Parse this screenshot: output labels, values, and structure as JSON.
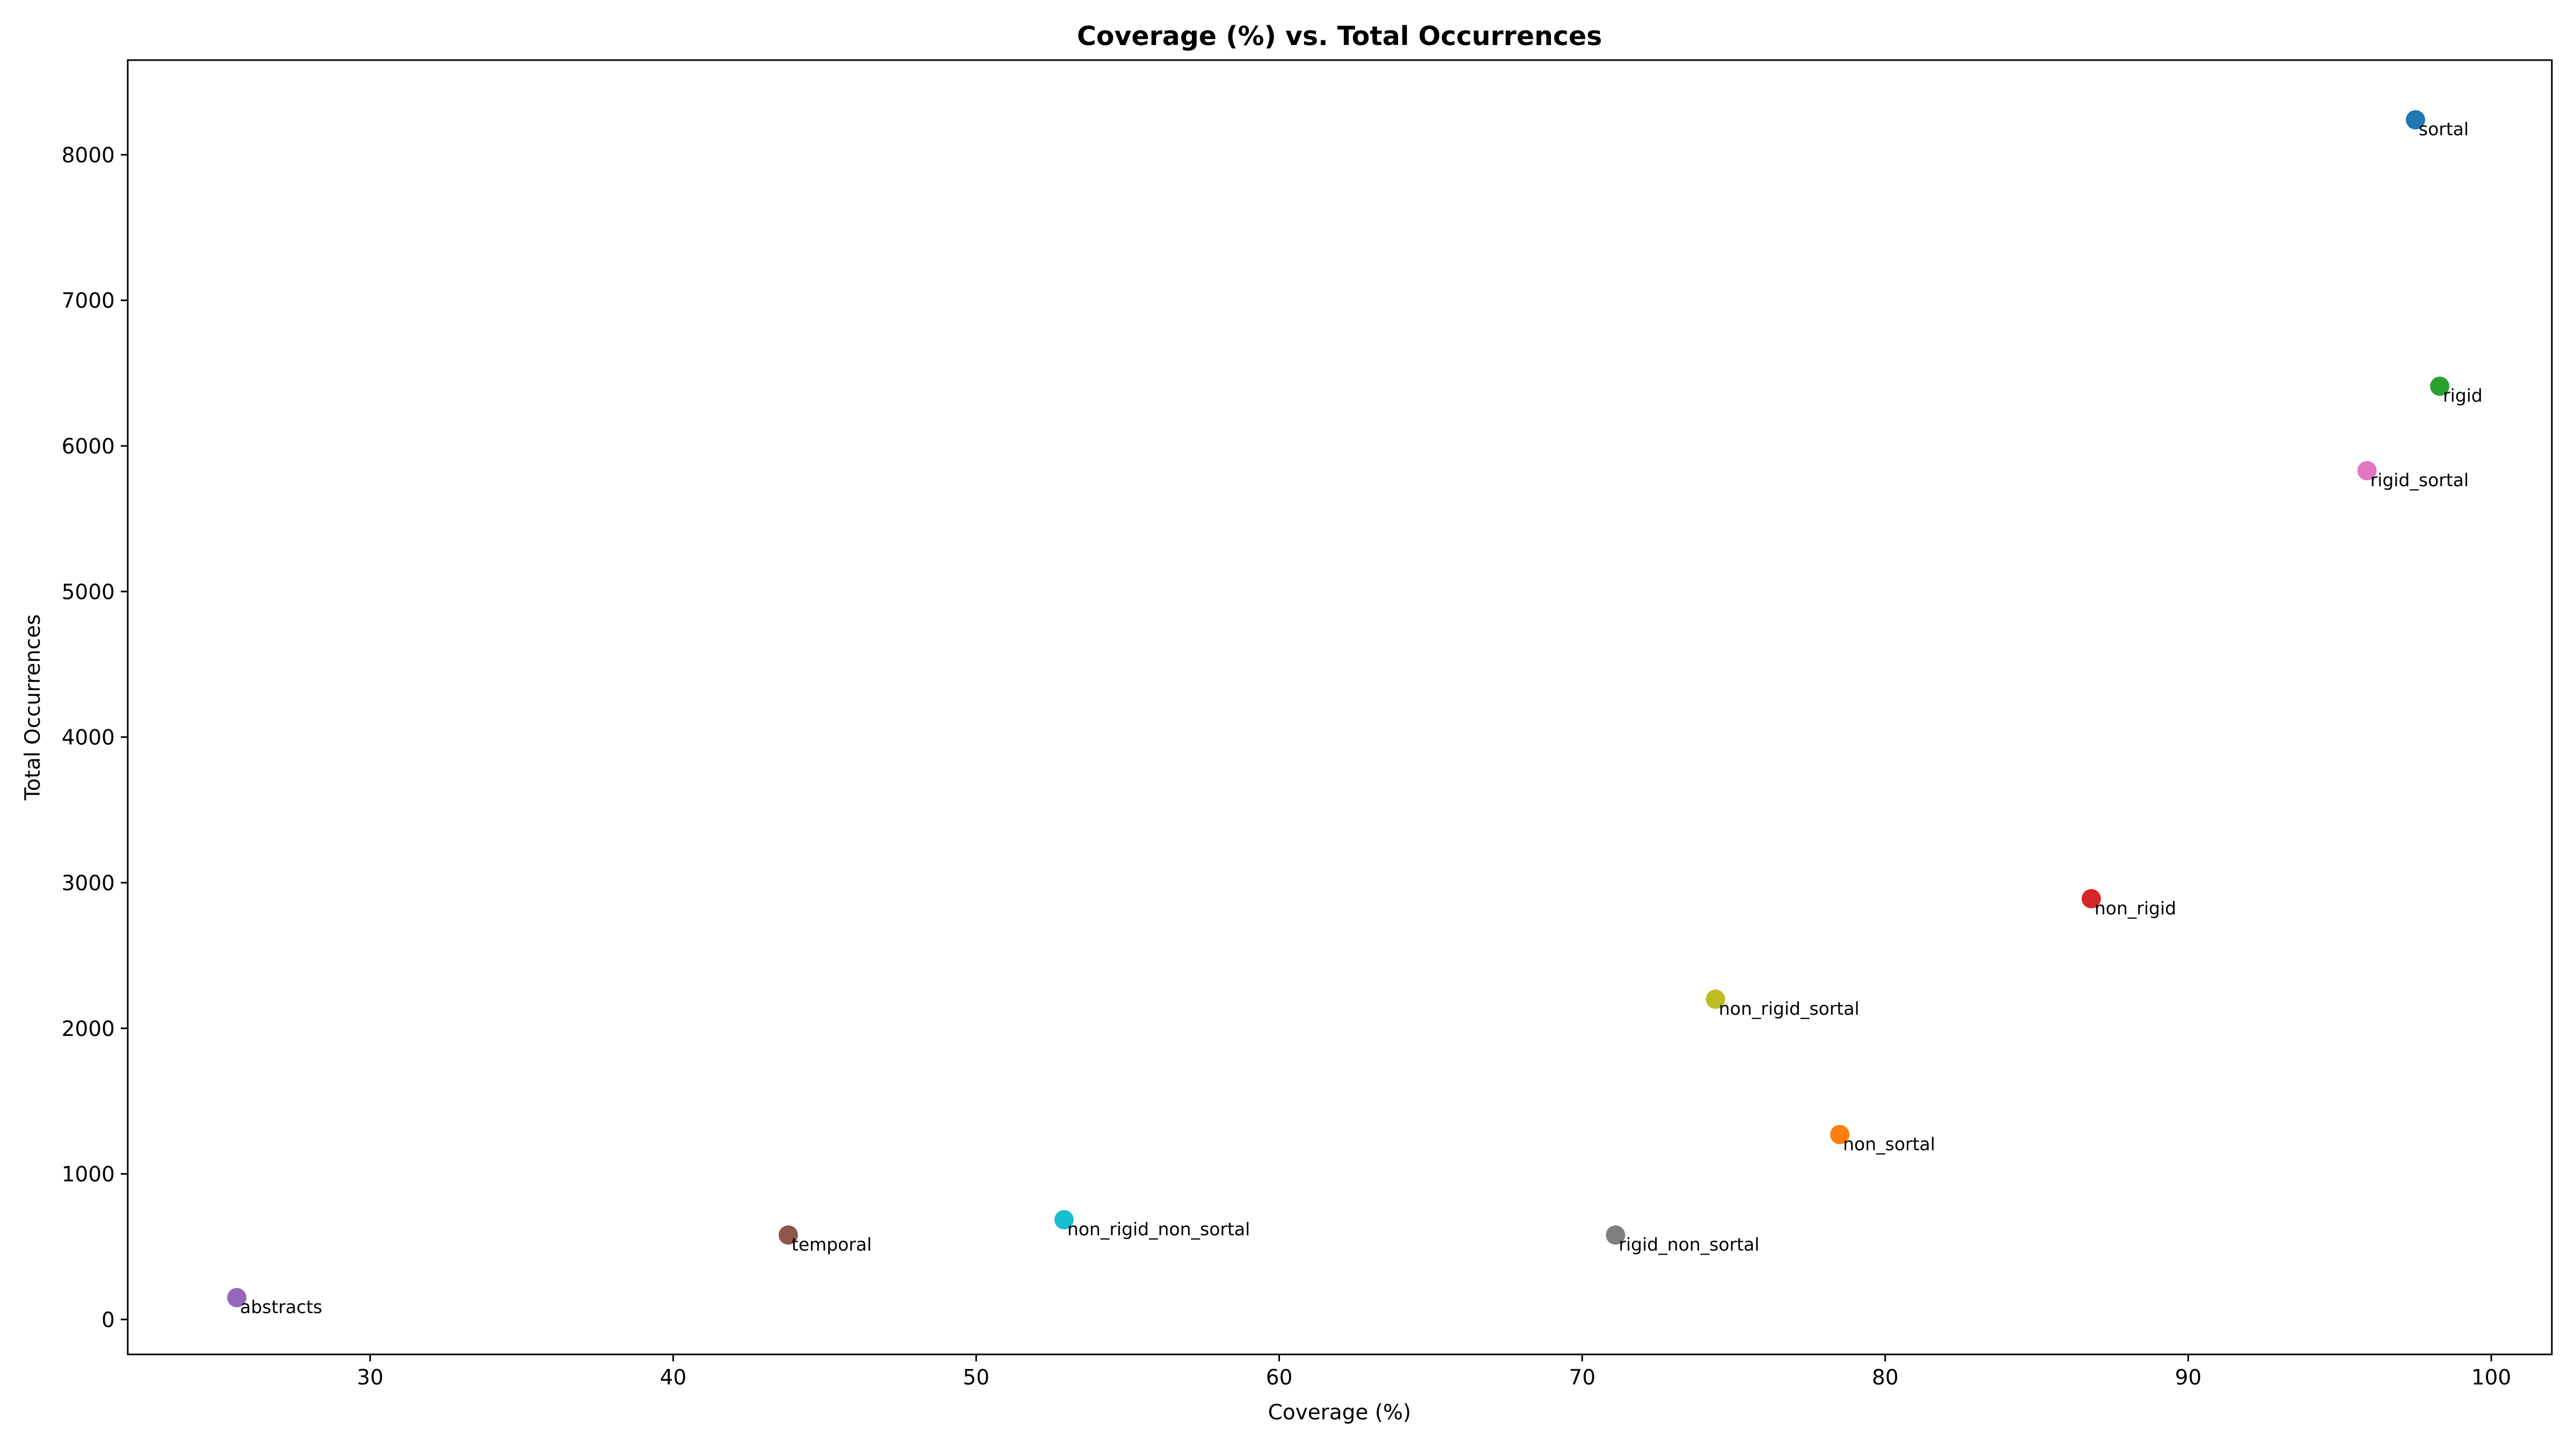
{
  "chart_data": {
    "type": "scatter",
    "title": "Coverage (%) vs. Total Occurrences",
    "xlabel": "Coverage (%)",
    "ylabel": "Total Occurrences",
    "xlim": [
      22,
      102
    ],
    "ylim": [
      -240,
      8650
    ],
    "xticks": [
      30,
      40,
      50,
      60,
      70,
      80,
      90,
      100
    ],
    "yticks": [
      0,
      1000,
      2000,
      3000,
      4000,
      5000,
      6000,
      7000,
      8000
    ],
    "grid": false,
    "legend": "none",
    "points": [
      {
        "label": "sortal",
        "x": 97.5,
        "y": 8240,
        "color": "#1f77b4"
      },
      {
        "label": "non_sortal",
        "x": 78.5,
        "y": 1270,
        "color": "#ff7f0e"
      },
      {
        "label": "rigid",
        "x": 98.3,
        "y": 6410,
        "color": "#2ca02c"
      },
      {
        "label": "non_rigid",
        "x": 86.8,
        "y": 2890,
        "color": "#d62728"
      },
      {
        "label": "abstracts",
        "x": 25.6,
        "y": 150,
        "color": "#9467bd"
      },
      {
        "label": "temporal",
        "x": 43.8,
        "y": 580,
        "color": "#8c564b"
      },
      {
        "label": "rigid_sortal",
        "x": 95.9,
        "y": 5830,
        "color": "#e377c2"
      },
      {
        "label": "rigid_non_sortal",
        "x": 71.1,
        "y": 580,
        "color": "#7f7f7f"
      },
      {
        "label": "non_rigid_sortal",
        "x": 74.4,
        "y": 2200,
        "color": "#bcbd22"
      },
      {
        "label": "non_rigid_non_sortal",
        "x": 52.9,
        "y": 685,
        "color": "#17becf"
      }
    ]
  }
}
